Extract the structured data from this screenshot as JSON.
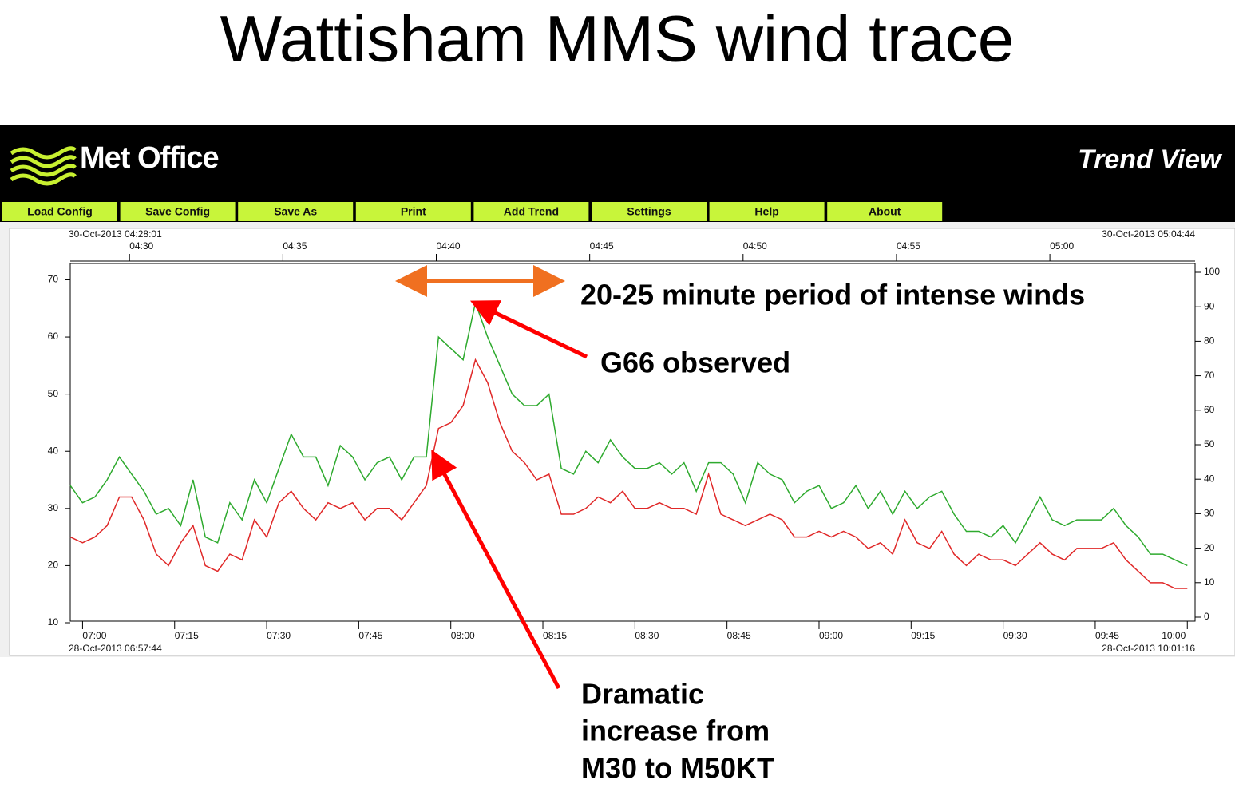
{
  "slide": {
    "title": "Wattisham MMS wind trace"
  },
  "app": {
    "logo": "Met Office",
    "header": "Trend View",
    "menu": [
      "Load Config",
      "Save Config",
      "Save As",
      "Print",
      "Add Trend",
      "Settings",
      "Help",
      "About"
    ]
  },
  "annotations": [
    {
      "text": "20-25 minute period of intense winds"
    },
    {
      "text": "G66 observed"
    },
    {
      "lines": [
        "Dramatic",
        "increase from",
        "M30 to M50KT"
      ]
    }
  ],
  "chart_data": {
    "type": "line",
    "x": [
      "06:58",
      "07:00",
      "07:02",
      "07:04",
      "07:06",
      "07:08",
      "07:10",
      "07:12",
      "07:14",
      "07:16",
      "07:18",
      "07:20",
      "07:22",
      "07:24",
      "07:26",
      "07:28",
      "07:30",
      "07:32",
      "07:34",
      "07:36",
      "07:38",
      "07:40",
      "07:42",
      "07:44",
      "07:46",
      "07:48",
      "07:50",
      "07:52",
      "07:54",
      "07:56",
      "07:58",
      "08:00",
      "08:02",
      "08:04",
      "08:06",
      "08:08",
      "08:10",
      "08:12",
      "08:14",
      "08:16",
      "08:18",
      "08:20",
      "08:22",
      "08:24",
      "08:26",
      "08:28",
      "08:30",
      "08:32",
      "08:34",
      "08:36",
      "08:38",
      "08:40",
      "08:42",
      "08:44",
      "08:46",
      "08:48",
      "08:50",
      "08:52",
      "08:54",
      "08:56",
      "08:58",
      "09:00",
      "09:02",
      "09:04",
      "09:06",
      "09:08",
      "09:10",
      "09:12",
      "09:14",
      "09:16",
      "09:18",
      "09:20",
      "09:22",
      "09:24",
      "09:26",
      "09:28",
      "09:30",
      "09:32",
      "09:34",
      "09:36",
      "09:38",
      "09:40",
      "09:42",
      "09:44",
      "09:46",
      "09:48",
      "09:50",
      "09:52",
      "09:54",
      "09:56",
      "09:58",
      "10:00"
    ],
    "series": [
      {
        "color": "#2eaa2e",
        "values": [
          34,
          31,
          32,
          35,
          39,
          36,
          33,
          29,
          30,
          27,
          35,
          25,
          24,
          31,
          28,
          35,
          31,
          37,
          43,
          39,
          39,
          34,
          41,
          39,
          35,
          38,
          39,
          35,
          39,
          39,
          60,
          58,
          56,
          66,
          60,
          55,
          50,
          48,
          48,
          50,
          37,
          36,
          40,
          38,
          42,
          39,
          37,
          37,
          38,
          36,
          38,
          33,
          38,
          38,
          36,
          31,
          38,
          36,
          35,
          31,
          33,
          34,
          30,
          31,
          34,
          30,
          33,
          29,
          33,
          30,
          32,
          33,
          29,
          26,
          26,
          25,
          27,
          24,
          28,
          32,
          28,
          27,
          28,
          28,
          28,
          30,
          27,
          25,
          22,
          22,
          21,
          20
        ]
      },
      {
        "color": "#e02828",
        "values": [
          25,
          24,
          25,
          27,
          32,
          32,
          28,
          22,
          20,
          24,
          27,
          20,
          19,
          22,
          21,
          28,
          25,
          31,
          33,
          30,
          28,
          31,
          30,
          31,
          28,
          30,
          30,
          28,
          31,
          34,
          44,
          45,
          48,
          56,
          52,
          45,
          40,
          38,
          35,
          36,
          29,
          29,
          30,
          32,
          31,
          33,
          30,
          30,
          31,
          30,
          30,
          29,
          36,
          29,
          28,
          27,
          28,
          29,
          28,
          25,
          25,
          26,
          25,
          26,
          25,
          23,
          24,
          22,
          28,
          24,
          23,
          26,
          22,
          20,
          22,
          21,
          21,
          20,
          22,
          24,
          22,
          21,
          23,
          23,
          23,
          24,
          21,
          19,
          17,
          17,
          16,
          16
        ]
      }
    ],
    "xlim": [
      "28-Oct-2013 06:57:44",
      "28-Oct-2013 10:01:16"
    ],
    "xticks": [
      "07:00",
      "07:15",
      "07:30",
      "07:45",
      "08:00",
      "08:15",
      "08:30",
      "08:45",
      "09:00",
      "09:15",
      "09:30",
      "09:45",
      "10:00"
    ],
    "x2lim": [
      "30-Oct-2013 04:28:01",
      "30-Oct-2013 05:04:44"
    ],
    "x2ticks": [
      "04:30",
      "04:35",
      "04:40",
      "04:45",
      "04:50",
      "04:55",
      "05:00"
    ],
    "ylim": [
      10,
      73
    ],
    "yticks": [
      10,
      20,
      30,
      40,
      50,
      60,
      70
    ],
    "y2lim": [
      0,
      100
    ],
    "y2ticks": [
      0,
      10,
      20,
      30,
      40,
      50,
      60,
      70,
      80,
      90,
      100
    ]
  }
}
